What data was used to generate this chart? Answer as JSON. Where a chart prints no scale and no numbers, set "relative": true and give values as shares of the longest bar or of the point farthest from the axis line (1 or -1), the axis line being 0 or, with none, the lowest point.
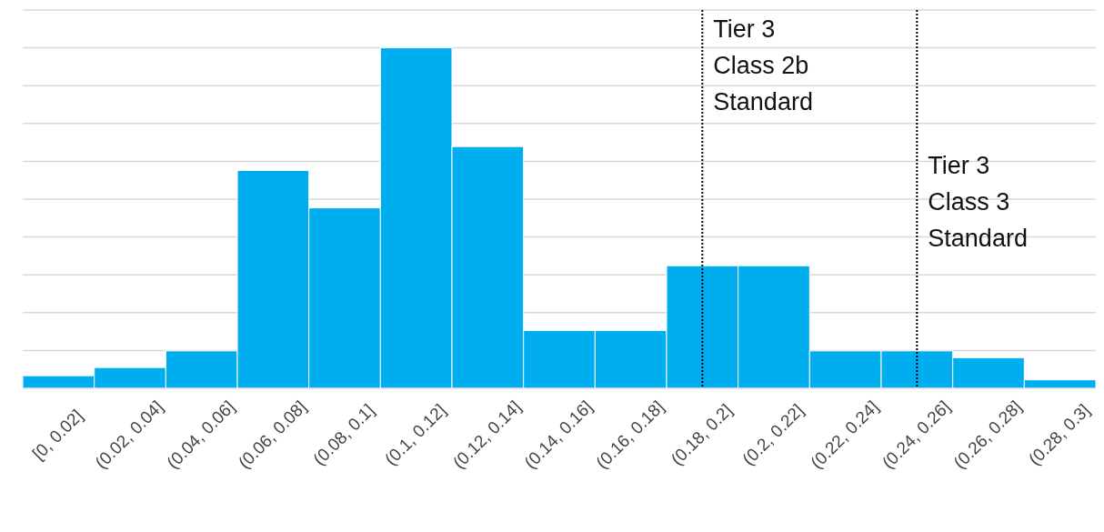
{
  "chart_data": {
    "type": "bar",
    "relative": true,
    "color": "#00aeef",
    "categories": [
      "[0, 0.02]",
      "(0.02, 0.04]",
      "(0.04, 0.06]",
      "(0.06, 0.08]",
      "(0.08, 0.1]",
      "(0.1, 0.12]",
      "(0.12, 0.14]",
      "(0.14, 0.16]",
      "(0.16, 0.18]",
      "(0.18, 0.2]",
      "(0.2, 0.22]",
      "(0.22, 0.24]",
      "(0.24, 0.26]",
      "(0.26, 0.28]",
      "(0.28, 0.3]"
    ],
    "values": [
      0.037,
      0.061,
      0.11,
      0.64,
      0.53,
      1,
      0.71,
      0.17,
      0.17,
      0.36,
      0.36,
      0.11,
      0.11,
      0.09,
      0.025
    ],
    "grid": "y",
    "ref_lines": [
      {
        "axis": "x",
        "value": "(0.18, 0.2]",
        "label": "Tier 3\nClass 2b\nStandard",
        "line_style": "dotted",
        "color": "#000000"
      },
      {
        "axis": "x",
        "value": "(0.24, 0.26]",
        "label": "Tier 3\nClass 3\nStandard",
        "line_style": "dotted",
        "color": "#000000"
      }
    ]
  }
}
